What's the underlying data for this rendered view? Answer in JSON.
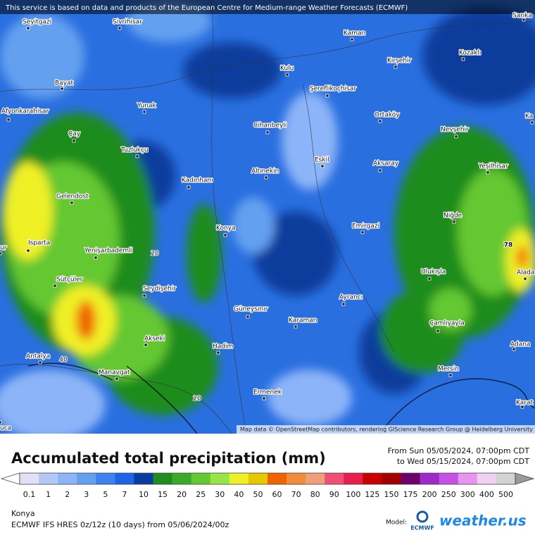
{
  "banner": "This service is based on data and products of the European Centre for Medium-range Weather Forecasts (ECMWF)",
  "map": {
    "places": [
      "Seyitgazi",
      "Sivrihisar",
      "Sarıka",
      "Kaman",
      "Kozaklı",
      "Kırşehir",
      "Kulu",
      "Bayat",
      "Şereflikoçhisar",
      "Yunak",
      "Afyonkarahisar",
      "Ortaköy",
      "Cihanbeyli",
      "Nevşehir",
      "Ka",
      "Çay",
      "Tuzlukçu",
      "Eskil",
      "Aksaray",
      "Yeşilhisar",
      "Altınekin",
      "Kadınhanı",
      "Gelendost",
      "Niğde",
      "Konya",
      "Emirgazi",
      "Isparta",
      "ur",
      "Yenişarbademli",
      "Ulukışla",
      "Alada",
      "Sütçüler",
      "Seydişehir",
      "Ayrancı",
      "Güneysınır",
      "Karaman",
      "Çamlıyayla",
      "Akseki",
      "Hadim",
      "Adana",
      "Antalya",
      "Mersin",
      "Manavgat",
      "Ermenek",
      "Karat",
      "uca"
    ],
    "contour_labels": [
      "20",
      "20",
      "40",
      "78"
    ],
    "attribution": "Map data © OpenStreetMap contributors, rendering GIScience Research Group @ Heidelberg University"
  },
  "title": "Accumulated total precipitation (mm)",
  "period": {
    "from": "From Sun 05/05/2024, 07:00pm CDT",
    "to": "to Wed 05/15/2024, 07:00pm CDT"
  },
  "legend": {
    "labels": [
      0.1,
      1,
      2,
      3,
      5,
      7,
      10,
      15,
      20,
      25,
      30,
      40,
      50,
      60,
      70,
      80,
      90,
      100,
      125,
      150,
      175,
      200,
      250,
      300,
      400,
      500
    ],
    "colors": [
      "#e0e0f8",
      "#b4c8f8",
      "#8cb4f8",
      "#64a0f0",
      "#3c82f0",
      "#1e64e6",
      "#0a3ca0",
      "#1e8c1e",
      "#3caa28",
      "#64c832",
      "#96e646",
      "#f0f028",
      "#e6c800",
      "#f06400",
      "#f08c3c",
      "#f0a078",
      "#f05078",
      "#e61e4b",
      "#c80000",
      "#a00000",
      "#6e006e",
      "#a028c8",
      "#c850e6",
      "#e696f0",
      "#f0d2f0",
      "#d2d2d2"
    ]
  },
  "location": "Konya",
  "model_run": "ECMWF IFS HRES 0z/12z (10 days) from 05/06/2024/00z",
  "logo": {
    "model_label": "Model:",
    "ecmwf": "ECMWF",
    "brand": "weather.us"
  }
}
